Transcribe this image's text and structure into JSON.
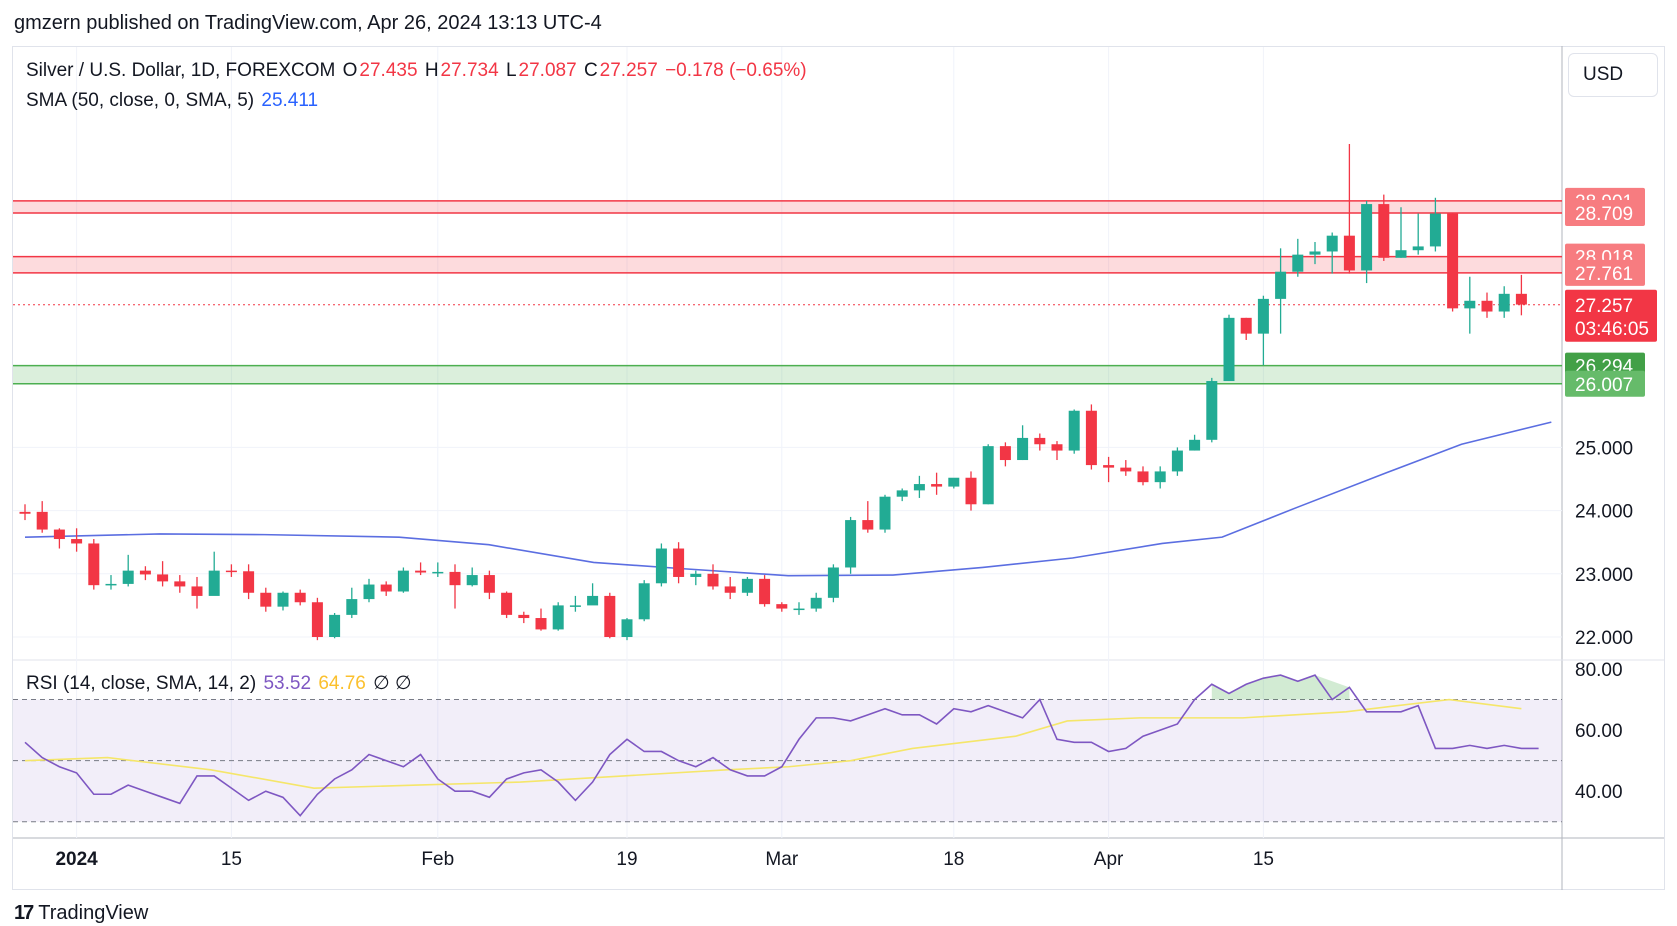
{
  "header": {
    "text": "gmzern published on TradingView.com, Apr 26, 2024 13:13 UTC-4"
  },
  "legend": {
    "symbol": "Silver / U.S. Dollar, 1D, FOREXCOM",
    "o_label": "O",
    "o_value": "27.435",
    "h_label": "H",
    "h_value": "27.734",
    "l_label": "L",
    "l_value": "27.087",
    "c_label": "C",
    "c_value": "27.257",
    "change": "−0.178 (−0.65%)",
    "sma_label": "SMA (50, close, 0, SMA, 5)",
    "sma_value": "25.411",
    "rsi_label": "RSI (14, close, SMA, 14, 2)",
    "rsi_value": "53.52",
    "rsi_sma_value": "64.76",
    "rsi_extra": "∅ ∅"
  },
  "currency_button": {
    "label": "USD"
  },
  "footer": {
    "brand": "TradingView",
    "logo_glyph": "17"
  },
  "colors": {
    "up": "#22ab94",
    "down": "#f23645",
    "sma": "#5b6ee1",
    "rsi": "#7e57c2",
    "rsi_ma": "#f5e66a",
    "resistance": "#f23645",
    "support": "#4caf50"
  },
  "chart_data": {
    "type": "candlestick",
    "symbol": "Silver / U.S. Dollar",
    "interval": "1D",
    "price_axis": {
      "ticks": [
        22.0,
        23.0,
        24.0,
        25.0
      ],
      "tick_labels": [
        "22.000",
        "23.000",
        "24.000",
        "25.000"
      ],
      "range": [
        21.3,
        30.0
      ]
    },
    "time_axis": {
      "labels": [
        "2024",
        "15",
        "Feb",
        "19",
        "Mar",
        "18",
        "Apr",
        "15"
      ],
      "label_bar_index": [
        3,
        12,
        24,
        35,
        44,
        54,
        63,
        72
      ]
    },
    "last_price": {
      "value": "27.257",
      "countdown": "03:46:05"
    },
    "resistance_zones": [
      {
        "top": 28.901,
        "bottom": 28.709,
        "labels": [
          "28.901",
          "28.709"
        ]
      },
      {
        "top": 28.018,
        "bottom": 27.761,
        "labels": [
          "28.018",
          "27.761"
        ]
      }
    ],
    "support_zone": {
      "top": 26.294,
      "bottom": 26.007,
      "labels": [
        "26.294",
        "26.007"
      ]
    },
    "candles": [
      [
        23.98,
        23.95,
        24.1,
        23.85
      ],
      [
        23.98,
        23.7,
        24.15,
        23.65
      ],
      [
        23.7,
        23.55,
        23.72,
        23.4
      ],
      [
        23.55,
        23.48,
        23.72,
        23.35
      ],
      [
        23.48,
        22.82,
        23.55,
        22.75
      ],
      [
        22.82,
        22.84,
        22.98,
        22.75
      ],
      [
        22.84,
        23.05,
        23.3,
        22.8
      ],
      [
        23.05,
        22.99,
        23.12,
        22.9
      ],
      [
        22.99,
        22.88,
        23.2,
        22.8
      ],
      [
        22.88,
        22.8,
        22.98,
        22.7
      ],
      [
        22.8,
        22.65,
        22.95,
        22.45
      ],
      [
        22.65,
        23.05,
        23.35,
        22.7
      ],
      [
        23.05,
        23.04,
        23.15,
        22.95
      ],
      [
        23.04,
        22.7,
        23.15,
        22.6
      ],
      [
        22.7,
        22.48,
        22.78,
        22.4
      ],
      [
        22.48,
        22.7,
        22.72,
        22.42
      ],
      [
        22.7,
        22.55,
        22.75,
        22.5
      ],
      [
        22.55,
        22.0,
        22.62,
        21.95
      ],
      [
        22.0,
        22.35,
        22.38,
        21.98
      ],
      [
        22.35,
        22.6,
        22.78,
        22.3
      ],
      [
        22.6,
        22.83,
        22.92,
        22.55
      ],
      [
        22.83,
        22.72,
        22.88,
        22.65
      ],
      [
        22.72,
        23.05,
        23.1,
        22.7
      ],
      [
        23.05,
        23.02,
        23.18,
        22.98
      ],
      [
        23.02,
        23.03,
        23.18,
        22.95
      ],
      [
        23.03,
        22.82,
        23.15,
        22.45
      ],
      [
        22.82,
        22.98,
        23.1,
        22.8
      ],
      [
        22.98,
        22.7,
        23.05,
        22.6
      ],
      [
        22.7,
        22.35,
        22.72,
        22.3
      ],
      [
        22.35,
        22.3,
        22.4,
        22.22
      ],
      [
        22.3,
        22.12,
        22.45,
        22.1
      ],
      [
        22.12,
        22.5,
        22.55,
        22.1
      ],
      [
        22.5,
        22.5,
        22.65,
        22.4
      ],
      [
        22.5,
        22.65,
        22.85,
        22.55
      ],
      [
        22.65,
        22.0,
        22.7,
        21.98
      ],
      [
        22.0,
        22.28,
        22.3,
        21.95
      ],
      [
        22.28,
        22.85,
        22.9,
        22.25
      ],
      [
        22.85,
        23.4,
        23.48,
        22.8
      ],
      [
        23.4,
        22.95,
        23.5,
        22.85
      ],
      [
        22.95,
        23.0,
        23.05,
        22.82
      ],
      [
        23.0,
        22.8,
        23.15,
        22.75
      ],
      [
        22.8,
        22.7,
        22.95,
        22.6
      ],
      [
        22.7,
        22.92,
        22.95,
        22.65
      ],
      [
        22.92,
        22.52,
        22.98,
        22.48
      ],
      [
        22.52,
        22.45,
        22.55,
        22.4
      ],
      [
        22.45,
        22.45,
        22.55,
        22.35
      ],
      [
        22.45,
        22.62,
        22.7,
        22.4
      ],
      [
        22.62,
        23.1,
        23.15,
        22.55
      ],
      [
        23.1,
        23.85,
        23.9,
        23.0
      ],
      [
        23.85,
        23.7,
        24.15,
        23.65
      ],
      [
        23.7,
        24.22,
        24.25,
        23.65
      ],
      [
        24.22,
        24.32,
        24.35,
        24.15
      ],
      [
        24.32,
        24.42,
        24.55,
        24.2
      ],
      [
        24.42,
        24.38,
        24.6,
        24.25
      ],
      [
        24.38,
        24.52,
        24.5,
        24.35
      ],
      [
        24.52,
        24.1,
        24.62,
        24.0
      ],
      [
        24.1,
        25.02,
        25.05,
        24.1
      ],
      [
        25.02,
        24.8,
        25.08,
        24.7
      ],
      [
        24.8,
        25.15,
        25.35,
        24.8
      ],
      [
        25.15,
        25.05,
        25.22,
        24.95
      ],
      [
        25.05,
        24.95,
        25.1,
        24.8
      ],
      [
        24.95,
        25.58,
        25.6,
        24.9
      ],
      [
        25.58,
        24.72,
        25.68,
        24.65
      ],
      [
        24.72,
        24.68,
        24.85,
        24.45
      ],
      [
        24.68,
        24.62,
        24.8,
        24.55
      ],
      [
        24.62,
        24.45,
        24.7,
        24.4
      ],
      [
        24.45,
        24.62,
        24.7,
        24.35
      ],
      [
        24.62,
        24.95,
        25.0,
        24.55
      ],
      [
        24.95,
        25.12,
        25.2,
        24.95
      ],
      [
        25.12,
        26.05,
        26.1,
        25.08
      ],
      [
        26.05,
        27.05,
        27.1,
        26.05
      ],
      [
        27.05,
        26.8,
        27.05,
        26.7
      ],
      [
        26.8,
        27.35,
        27.4,
        26.3
      ],
      [
        27.35,
        27.78,
        28.15,
        26.8
      ],
      [
        27.78,
        28.05,
        28.3,
        27.7
      ],
      [
        28.05,
        28.1,
        28.25,
        27.9
      ],
      [
        28.1,
        28.35,
        28.4,
        27.75
      ],
      [
        28.35,
        27.8,
        29.8,
        27.75
      ],
      [
        27.8,
        28.85,
        28.9,
        27.6
      ],
      [
        28.85,
        28.0,
        29.0,
        27.95
      ],
      [
        28.0,
        28.12,
        28.8,
        28.0
      ],
      [
        28.12,
        28.18,
        28.7,
        28.05
      ],
      [
        28.18,
        28.7,
        28.95,
        28.1
      ],
      [
        28.7,
        27.2,
        28.7,
        27.15
      ],
      [
        27.2,
        27.32,
        27.7,
        26.8
      ],
      [
        27.32,
        27.15,
        27.45,
        27.05
      ],
      [
        27.15,
        27.43,
        27.55,
        27.05
      ],
      [
        27.43,
        27.26,
        27.73,
        27.09
      ]
    ],
    "sma_series": {
      "name": "SMA (50, close, 0, SMA, 5)",
      "points": [
        [
          0,
          23.58
        ],
        [
          9,
          23.63
        ],
        [
          16,
          23.62
        ],
        [
          25,
          23.58
        ],
        [
          31,
          23.46
        ],
        [
          38,
          23.18
        ],
        [
          44,
          23.08
        ],
        [
          51,
          22.97
        ],
        [
          58,
          22.98
        ],
        [
          64,
          23.1
        ],
        [
          70,
          23.25
        ],
        [
          76,
          23.48
        ],
        [
          80,
          23.58
        ],
        [
          85,
          24.05
        ],
        [
          91,
          24.6
        ],
        [
          96,
          25.05
        ],
        [
          102,
          25.4
        ]
      ]
    },
    "rsi_axis": {
      "ticks": [
        40,
        60,
        80
      ],
      "tick_labels": [
        "40.00",
        "60.00",
        "80.00"
      ],
      "levels": [
        30,
        50,
        70
      ],
      "range": [
        25,
        85
      ]
    },
    "rsi_series": {
      "name": "RSI (14, close, SMA, 14, 2)",
      "values": [
        56,
        51,
        48,
        46,
        39,
        39,
        42,
        40,
        38,
        36,
        45,
        45,
        41,
        37,
        40,
        38,
        32,
        39,
        44,
        47,
        52,
        50,
        48,
        52,
        44,
        40,
        40,
        38,
        44,
        46,
        47,
        43,
        37,
        43,
        52,
        57,
        53,
        53,
        50,
        48,
        51,
        47,
        45,
        45,
        48,
        57,
        64,
        64,
        63,
        65,
        67,
        65,
        65,
        62,
        67,
        66,
        68,
        66,
        64,
        70,
        57,
        56,
        56,
        53,
        54,
        58,
        60,
        62,
        70,
        75,
        72,
        75,
        77,
        78,
        76,
        78,
        70,
        74,
        66,
        66,
        66,
        68,
        54,
        54,
        55,
        54,
        55,
        54,
        54
      ]
    },
    "rsi_ma_series": {
      "name": "RSI SMA",
      "points": [
        [
          0,
          50
        ],
        [
          8,
          51
        ],
        [
          18,
          47
        ],
        [
          28,
          41
        ],
        [
          38,
          42
        ],
        [
          48,
          43
        ],
        [
          58,
          45
        ],
        [
          68,
          47
        ],
        [
          74,
          48
        ],
        [
          80,
          50
        ],
        [
          86,
          54
        ],
        [
          96,
          58
        ],
        [
          101,
          63
        ],
        [
          108,
          64
        ],
        [
          118,
          64
        ],
        [
          128,
          66
        ],
        [
          138,
          70
        ],
        [
          145,
          67
        ]
      ]
    }
  }
}
